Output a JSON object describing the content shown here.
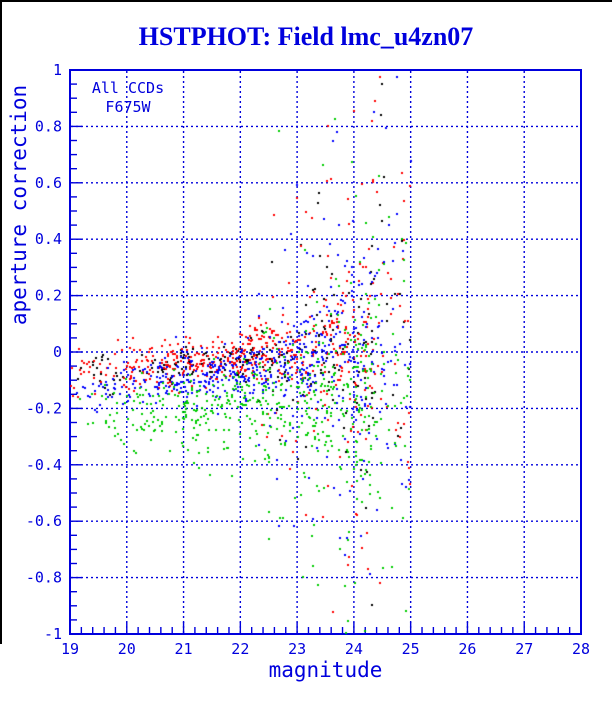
{
  "title": "HSTPHOT: Field lmc_u4zn07",
  "legend": {
    "line1": "All CCDs",
    "line2": "F675W"
  },
  "axes": {
    "x_label": "magnitude",
    "y_label": "aperture correction",
    "x_tick_labels": [
      "19",
      "20",
      "21",
      "22",
      "23",
      "24",
      "25",
      "26",
      "27",
      "28"
    ],
    "y_tick_labels": [
      "1",
      "0.8",
      "0.6",
      "0.4",
      "0.2",
      "0",
      "-0.2",
      "-0.4",
      "-0.6",
      "-0.8",
      "-1"
    ]
  },
  "colors": {
    "axis": "#0000dd",
    "background": "#ffffff",
    "window_edge": "#000000",
    "points": {
      "black": "#000000",
      "red": "#ff0000",
      "blue": "#0000ff",
      "green": "#00cc00"
    }
  },
  "chart_data": {
    "type": "scatter",
    "title": "HSTPHOT: Field lmc_u4zn07",
    "xlabel": "magnitude",
    "ylabel": "aperture correction",
    "xlim": [
      19,
      28
    ],
    "ylim": [
      -1,
      1
    ],
    "x_major_tick": 1,
    "x_minor_tick": 0.2,
    "y_major_tick": 0.2,
    "y_minor_tick": 0.05,
    "grid": "blue dashed lines at every major tick; ticks drawn inward on left and bottom edges only",
    "legend_position": "top-left inside plot",
    "annotations": [
      "All CCDs",
      "F675W"
    ],
    "data_mag_range": [
      19,
      25
    ],
    "description": "Aperture correction vs magnitude for roughly 1900 stars measured on 4 CCD chips rendered as 2px squares colored black, red, blue and green. Bright stars (mag 19-22) form tight horizontal bands: red and black near -0.09, blue near -0.13, green near -0.21 with a downward tail to about -0.45. Bands drift slightly upward toward 0 with increasing magnitude. Scatter grows rapidly past mag 22.5, spanning the full -1 to +1 range (with clipping at the frame) by mag 23.5-25. No data beyond magnitude 25.",
    "generation": {
      "seed": 1337,
      "mag_power": 0.62,
      "faint_thin_start": 24.35,
      "faint_thin_prob": 0.55,
      "sigma_growth": 0.26,
      "sigma_growth_power": 2.2,
      "sigma_growth_start": 21.5,
      "sigma_growth_span": 3.5,
      "outlier_start": 22.3,
      "outlier_prob": 0.16,
      "outlier_base": 0.3,
      "outlier_span": 1.8,
      "wild_prob": 0.03,
      "series": [
        {
          "name": "ccd-black",
          "color": "#000000",
          "count": 250,
          "base": -0.085,
          "slope": 0.02,
          "tight": 0.035,
          "skew": 0
        },
        {
          "name": "ccd-red",
          "color": "#ff0000",
          "count": 560,
          "base": -0.085,
          "slope": 0.022,
          "tight": 0.038,
          "skew": 0
        },
        {
          "name": "ccd-blue",
          "color": "#0000ff",
          "count": 560,
          "base": -0.13,
          "slope": 0.022,
          "tight": 0.042,
          "skew": 0.05
        },
        {
          "name": "ccd-green",
          "color": "#00cc00",
          "count": 560,
          "base": -0.205,
          "slope": 0.015,
          "tight": 0.06,
          "skew": 0.22
        }
      ]
    }
  }
}
